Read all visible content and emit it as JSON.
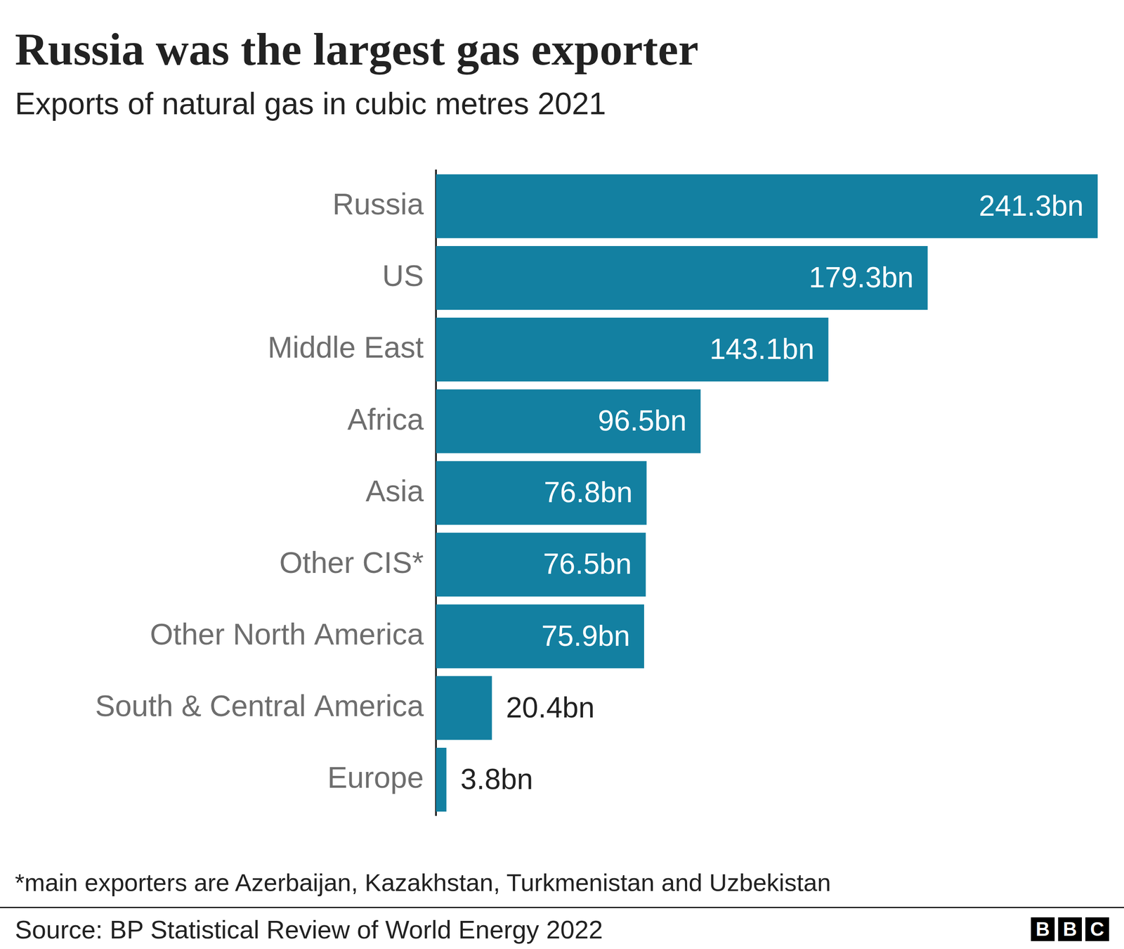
{
  "chart_data": {
    "type": "bar",
    "orientation": "horizontal",
    "title": "Russia was the largest gas exporter",
    "subtitle": "Exports of natural gas in cubic metres 2021",
    "categories": [
      "Russia",
      "US",
      "Middle East",
      "Africa",
      "Asia",
      "Other CIS*",
      "Other North America",
      "South & Central America",
      "Europe"
    ],
    "values": [
      241.3,
      179.3,
      143.1,
      96.5,
      76.8,
      76.5,
      75.9,
      20.4,
      3.8
    ],
    "value_labels": [
      "241.3bn",
      "179.3bn",
      "143.1bn",
      "96.5bn",
      "76.8bn",
      "76.5bn",
      "75.9bn",
      "20.4bn",
      "3.8bn"
    ],
    "color": "#1380a1",
    "xlim": [
      0,
      241.3
    ],
    "xticks": [],
    "grid": false,
    "data_labels": true,
    "tick_labels": "y",
    "footnote": "*main exporters are Azerbaijan, Kazakhstan, Turkmenistan and Uzbekistan",
    "source": "Source: BP Statistical Review of World Energy 2022",
    "logo": "BBC"
  }
}
